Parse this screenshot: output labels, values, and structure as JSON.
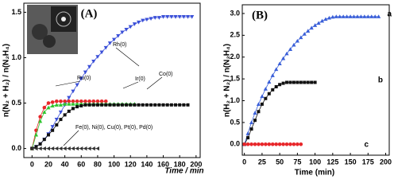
{
  "chart_data": [
    {
      "type": "line",
      "title": "(A)",
      "x_label": "Time / min",
      "y_label": "n(N₂ + H₂) / n(N₂H₄)",
      "xlim": [
        -10,
        205
      ],
      "ylim": [
        -0.1,
        1.6
      ],
      "xticks": [
        0,
        20,
        40,
        60,
        80,
        100,
        120,
        140,
        160,
        180,
        200
      ],
      "yticks": [
        {
          "value": 0,
          "label": "0.0"
        },
        {
          "value": 0.5,
          "label": "0.5"
        },
        {
          "value": 1,
          "label": "1.0"
        },
        {
          "value": 1.5,
          "label": "1.5"
        }
      ],
      "series": [
        {
          "name": "Rh(0)",
          "color": "#3a4fd8",
          "marker": "triangle-down",
          "x": [
            0,
            5,
            10,
            15,
            20,
            25,
            30,
            35,
            40,
            45,
            50,
            55,
            60,
            65,
            70,
            75,
            80,
            85,
            90,
            95,
            100,
            105,
            110,
            115,
            120,
            125,
            130,
            135,
            140,
            145,
            150,
            155,
            160,
            165,
            170,
            175,
            180,
            185,
            190,
            195
          ],
          "values": [
            0,
            0.02,
            0.05,
            0.1,
            0.16,
            0.24,
            0.32,
            0.4,
            0.48,
            0.56,
            0.63,
            0.7,
            0.77,
            0.84,
            0.9,
            0.96,
            1.01,
            1.06,
            1.11,
            1.16,
            1.2,
            1.24,
            1.28,
            1.31,
            1.34,
            1.37,
            1.39,
            1.41,
            1.42,
            1.43,
            1.44,
            1.44,
            1.45,
            1.45,
            1.45,
            1.45,
            1.45,
            1.45,
            1.45,
            1.45
          ]
        },
        {
          "name": "Ru(0)",
          "color": "#e8262a",
          "marker": "circle",
          "x": [
            0,
            5,
            10,
            15,
            20,
            25,
            30,
            35,
            40,
            45,
            50,
            55,
            60,
            65,
            70,
            75,
            80,
            85,
            90
          ],
          "values": [
            0,
            0.2,
            0.35,
            0.45,
            0.5,
            0.51,
            0.52,
            0.52,
            0.52,
            0.52,
            0.52,
            0.52,
            0.52,
            0.52,
            0.52,
            0.52,
            0.52,
            0.52,
            0.52
          ]
        },
        {
          "name": "Ir(0)",
          "color": "#2fc52f",
          "marker": "triangle",
          "x": [
            0,
            5,
            10,
            15,
            20,
            25,
            30,
            35,
            40,
            45,
            50,
            55,
            60,
            65,
            70,
            75,
            80,
            85,
            90,
            95,
            100,
            105,
            110,
            115,
            120,
            125
          ],
          "values": [
            0,
            0.15,
            0.3,
            0.4,
            0.45,
            0.47,
            0.48,
            0.48,
            0.49,
            0.49,
            0.49,
            0.49,
            0.49,
            0.49,
            0.49,
            0.49,
            0.49,
            0.49,
            0.49,
            0.49,
            0.49,
            0.49,
            0.49,
            0.49,
            0.49,
            0.49
          ]
        },
        {
          "name": "Co(0)",
          "color": "#111111",
          "marker": "square",
          "x": [
            0,
            5,
            10,
            15,
            20,
            25,
            30,
            35,
            40,
            45,
            50,
            55,
            60,
            65,
            70,
            75,
            80,
            85,
            90,
            95,
            100,
            105,
            110,
            115,
            120,
            125,
            130,
            135,
            140,
            145,
            150,
            155,
            160,
            165,
            170,
            175,
            180,
            185,
            190
          ],
          "values": [
            0,
            0.02,
            0.05,
            0.1,
            0.15,
            0.2,
            0.26,
            0.32,
            0.37,
            0.41,
            0.44,
            0.46,
            0.47,
            0.48,
            0.48,
            0.48,
            0.48,
            0.48,
            0.48,
            0.48,
            0.48,
            0.48,
            0.48,
            0.48,
            0.48,
            0.48,
            0.48,
            0.48,
            0.48,
            0.48,
            0.48,
            0.48,
            0.48,
            0.48,
            0.48,
            0.48,
            0.48,
            0.48,
            0.48
          ]
        },
        {
          "name": "Fe(0), Ni(0), Cu(0), Pt(0), Pd(0)",
          "color": "#333333",
          "marker": "triangle-left",
          "x": [
            0,
            5,
            10,
            15,
            20,
            25,
            30,
            35,
            40,
            45,
            50,
            55,
            60,
            65,
            70,
            75,
            80
          ],
          "values": [
            0,
            0,
            0,
            0,
            0,
            0,
            0,
            0,
            0,
            0,
            0,
            0,
            0,
            0,
            0,
            0,
            0
          ]
        }
      ]
    },
    {
      "type": "line",
      "title": "(B)",
      "x_label": "Time (min)",
      "y_label": "n(H₂ + N₂) / n(N₂H₄)",
      "xlim": [
        -3,
        205
      ],
      "ylim": [
        -0.25,
        3.2
      ],
      "xticks": [
        0,
        25,
        50,
        75,
        100,
        125,
        150,
        175,
        200
      ],
      "yticks": [
        {
          "value": 0,
          "label": "0.0"
        },
        {
          "value": 0.5,
          "label": "0.5"
        },
        {
          "value": 1,
          "label": "1.0"
        },
        {
          "value": 1.5,
          "label": "1.5"
        },
        {
          "value": 2,
          "label": "2.0"
        },
        {
          "value": 2.5,
          "label": "2.5"
        },
        {
          "value": 3,
          "label": "3.0"
        }
      ],
      "series": [
        {
          "name": "a",
          "color": "#3a5fd8",
          "marker": "triangle",
          "x": [
            0,
            5,
            10,
            15,
            20,
            25,
            30,
            35,
            40,
            45,
            50,
            55,
            60,
            65,
            70,
            75,
            80,
            85,
            90,
            95,
            100,
            105,
            110,
            115,
            120,
            125,
            130,
            135,
            140,
            145,
            150,
            155,
            160,
            165,
            170,
            175,
            180,
            185,
            190
          ],
          "values": [
            0,
            0.25,
            0.5,
            0.72,
            0.92,
            1.1,
            1.27,
            1.43,
            1.58,
            1.72,
            1.85,
            1.97,
            2.08,
            2.18,
            2.28,
            2.37,
            2.45,
            2.53,
            2.6,
            2.67,
            2.73,
            2.78,
            2.83,
            2.87,
            2.9,
            2.92,
            2.93,
            2.93,
            2.93,
            2.93,
            2.93,
            2.93,
            2.93,
            2.93,
            2.93,
            2.93,
            2.93,
            2.93,
            2.93
          ]
        },
        {
          "name": "b",
          "color": "#111111",
          "marker": "square",
          "x": [
            0,
            5,
            10,
            15,
            20,
            25,
            30,
            35,
            40,
            45,
            50,
            55,
            60,
            65,
            70,
            75,
            80,
            85,
            90,
            95,
            100
          ],
          "values": [
            0,
            0.15,
            0.35,
            0.55,
            0.75,
            0.92,
            1.05,
            1.16,
            1.25,
            1.32,
            1.37,
            1.4,
            1.42,
            1.42,
            1.42,
            1.42,
            1.42,
            1.42,
            1.42,
            1.42,
            1.42
          ]
        },
        {
          "name": "c",
          "color": "#e8262a",
          "marker": "circle",
          "x": [
            0,
            5,
            10,
            15,
            20,
            25,
            30,
            35,
            40,
            45,
            50,
            55,
            60,
            65,
            70,
            75,
            80
          ],
          "values": [
            0,
            0,
            0,
            0,
            0,
            0,
            0,
            0,
            0,
            0,
            0,
            0,
            0,
            0,
            0,
            0,
            0
          ]
        }
      ]
    }
  ]
}
